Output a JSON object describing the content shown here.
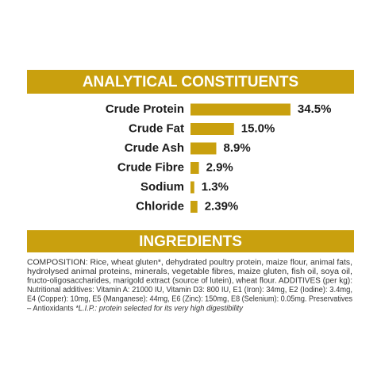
{
  "chart_data": {
    "type": "bar",
    "orientation": "horizontal",
    "title": "ANALYTICAL CONSTITUENTS",
    "color": "#c9a00e",
    "categories": [
      "Crude Protein",
      "Crude Fat",
      "Crude Ash",
      "Crude Fibre",
      "Sodium",
      "Chloride"
    ],
    "values": [
      34.5,
      15.0,
      8.9,
      2.9,
      1.3,
      2.39
    ],
    "value_labels": [
      "34.5%",
      "15.0%",
      "8.9%",
      "2.9%",
      "1.3%",
      "2.39%"
    ]
  },
  "ingredients": {
    "title": "INGREDIENTS",
    "lines": [
      "COMPOSITION: Rice, wheat gluten*, dehydrated poultry protein, maize flour, animal fats,",
      "hydrolysed animal proteins, minerals, vegetable fibres, maize gluten, fish oil, soya oil,",
      "fructo-oligosaccharides, marigold extract (source of lutein), wheat flour. ADDITIVES (per kg):",
      "Nutritional additives: Vitamin A: 21000 IU, Vitamin D3: 800 IU, E1 (Iron): 34mg, E2 (Iodine): 3.4mg,",
      "E4 (Copper): 10mg, E5 (Manganese): 44mg, E6 (Zinc): 150mg, E8 (Selenium): 0.05mg. Preservatives"
    ],
    "last_line": "– Antioxidants",
    "footnote": "*L.I.P.: protein selected for its very high digestibility"
  }
}
